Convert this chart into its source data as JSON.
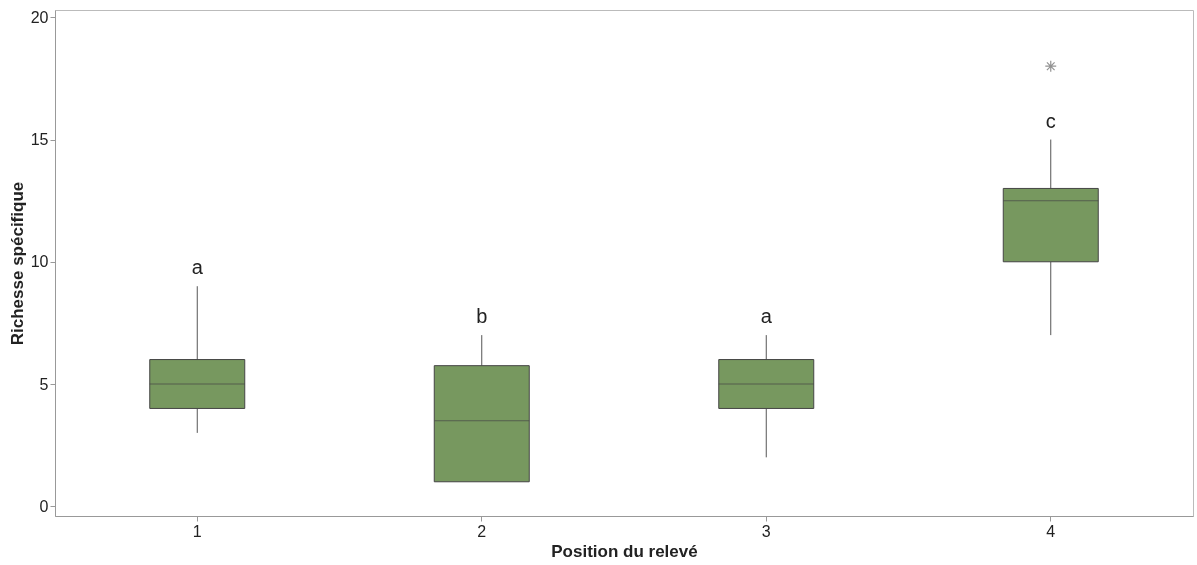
{
  "chart_data": {
    "type": "box",
    "xlabel": "Position du relevé",
    "ylabel": "Richesse spécifique",
    "categories": [
      "1",
      "2",
      "3",
      "4"
    ],
    "boxes": [
      {
        "low": 3,
        "q1": 4,
        "median": 5,
        "q3": 6,
        "high": 9
      },
      {
        "low": 1,
        "q1": 1,
        "median": 3.5,
        "q3": 5.75,
        "high": 7
      },
      {
        "low": 2,
        "q1": 4,
        "median": 5,
        "q3": 6,
        "high": 7
      },
      {
        "low": 7,
        "q1": 10,
        "median": 12.5,
        "q3": 13,
        "high": 15,
        "outliers": [
          18
        ]
      }
    ],
    "color": "#77985f",
    "ylim": [
      -0.4,
      20.3
    ],
    "yticks": [
      0,
      5,
      10,
      15,
      20
    ],
    "grid": false,
    "annotations": [
      "a",
      "b",
      "a",
      "c"
    ]
  }
}
